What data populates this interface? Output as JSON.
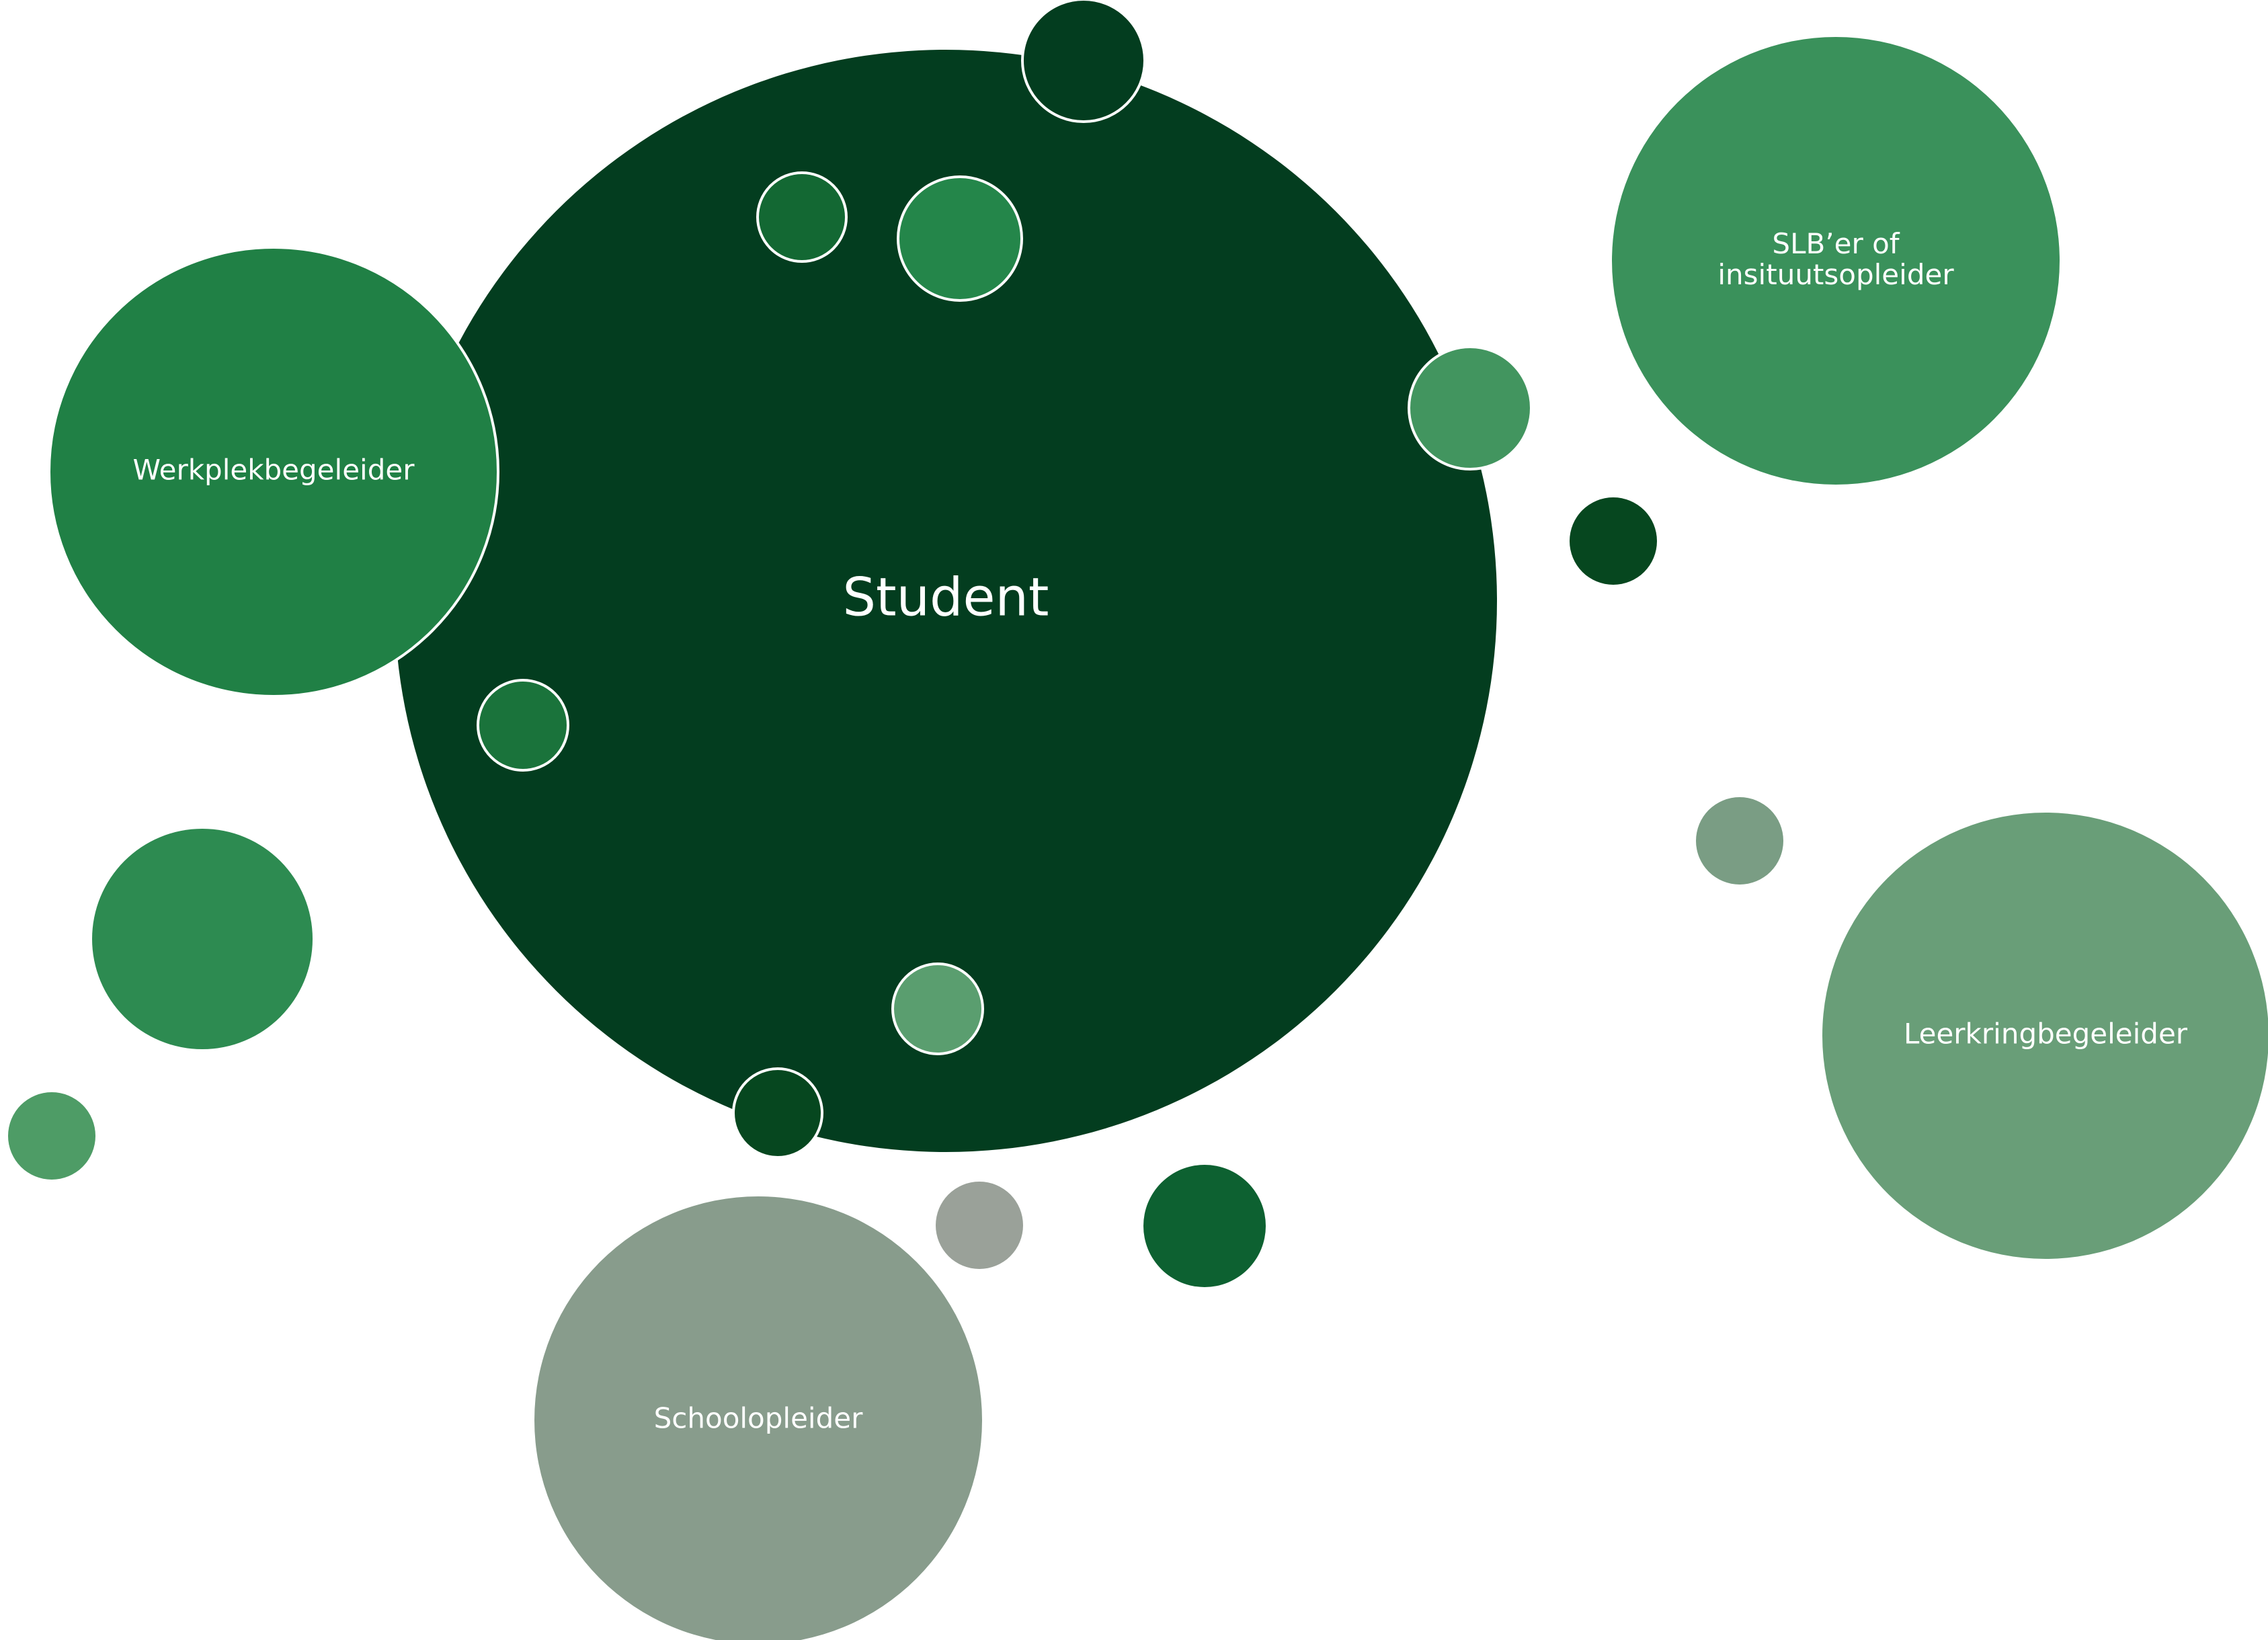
{
  "diagram": {
    "colors": {
      "background": "#ffffff",
      "outline": "#ffffff",
      "label_text": "#ffffff"
    },
    "nodes": [
      {
        "id": "student",
        "label": "Student",
        "fill": "#033d1f",
        "label_style": "main"
      },
      {
        "id": "werkplekbegeleider",
        "label": "Werkplekbegeleider",
        "fill": "#208045",
        "label_style": "sub"
      },
      {
        "id": "slber",
        "label": "SLB’er of\ninsituutsopleider",
        "fill": "#3a915b",
        "label_style": "sub"
      },
      {
        "id": "leerkringbegeleider",
        "label": "Leerkringbegeleider",
        "fill": "#699e78",
        "label_style": "sub"
      },
      {
        "id": "schoolopleider",
        "label": "Schoolopleider",
        "fill": "#889c8c",
        "label_style": "sub"
      }
    ],
    "bubbles": [
      {
        "id": "bubble-top",
        "fill": "#033d1f"
      },
      {
        "id": "bubble-inner-left-top",
        "fill": "#136833"
      },
      {
        "id": "bubble-inner-center-top",
        "fill": "#24864a"
      },
      {
        "id": "bubble-right-edge",
        "fill": "#42955f"
      },
      {
        "id": "bubble-right-dark",
        "fill": "#06471f"
      },
      {
        "id": "bubble-inner-left-mid",
        "fill": "#1a733b"
      },
      {
        "id": "bubble-left-medium",
        "fill": "#2d8b51"
      },
      {
        "id": "bubble-left-small",
        "fill": "#4e9c66"
      },
      {
        "id": "bubble-inner-bottom",
        "fill": "#5a9e6f"
      },
      {
        "id": "bubble-bottom-edge",
        "fill": "#06471f"
      },
      {
        "id": "bubble-gray-small",
        "fill": "#9aa199"
      },
      {
        "id": "bubble-bottom-dark",
        "fill": "#0d6131"
      },
      {
        "id": "bubble-right-gray",
        "fill": "#7a9d84"
      }
    ]
  }
}
